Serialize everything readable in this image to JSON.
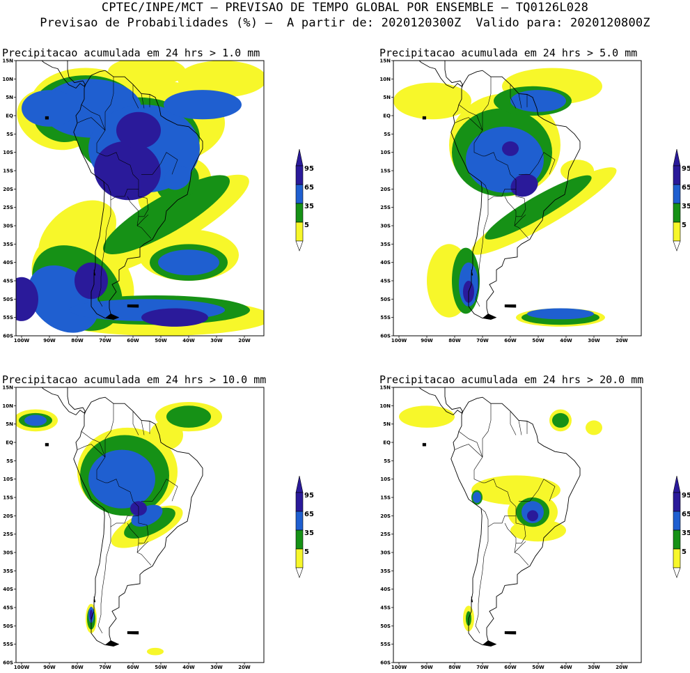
{
  "header": {
    "line1": "CPTEC/INPE/MCT — PREVISAO DE TEMPO GLOBAL POR ENSEMBLE — TQ0126L028",
    "line2": "Previsao de Probabilidades (%) —  A partir de: 2020120300Z  Valido para: 2020120800Z"
  },
  "map": {
    "lat_labels": [
      "15N",
      "10N",
      "5N",
      "EQ",
      "5S",
      "10S",
      "15S",
      "20S",
      "25S",
      "30S",
      "35S",
      "40S",
      "45S",
      "50S",
      "55S",
      "60S"
    ],
    "lon_labels": [
      "100W",
      "90W",
      "80W",
      "70W",
      "60W",
      "50W",
      "40W",
      "30W",
      "20W"
    ]
  },
  "colorbar": {
    "levels": [
      "95",
      "65",
      "35",
      "5"
    ],
    "colors": {
      "p95": "#2a1a9a",
      "p65": "#1f5fd0",
      "p35": "#169116",
      "p5": "#f7f72a"
    }
  },
  "panels": [
    {
      "title": "Precipitacao acumulada em 24 hrs > 1.0 mm"
    },
    {
      "title": "Precipitacao acumulada em 24 hrs > 5.0 mm"
    },
    {
      "title": "Precipitacao acumulada em 24 hrs > 10.0 mm"
    },
    {
      "title": "Precipitacao acumulada em 24 hrs > 20.0 mm"
    }
  ]
}
